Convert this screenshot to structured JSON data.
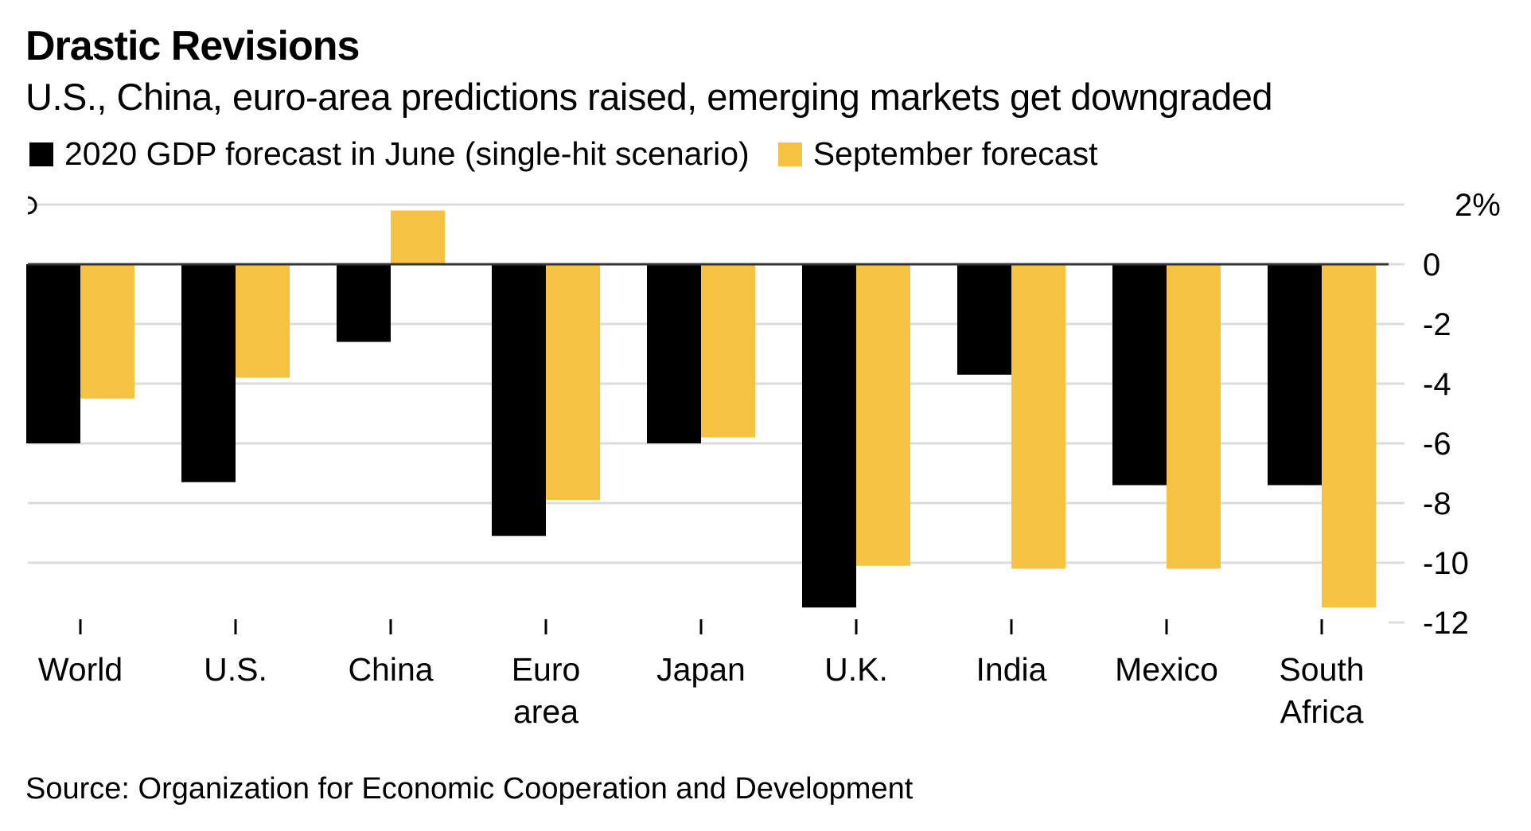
{
  "header": {
    "title": "Drastic Revisions",
    "subtitle": "U.S., China, euro-area predictions raised, emerging markets get downgraded"
  },
  "legend": [
    {
      "label": "2020 GDP forecast in June (single-hit scenario)",
      "color": "#000000"
    },
    {
      "label": "September forecast",
      "color": "#F5C242"
    }
  ],
  "footer": {
    "source": "Source: Organization for Economic Cooperation and Development"
  },
  "chart_data": {
    "type": "bar",
    "title": "Drastic Revisions",
    "subtitle": "U.S., China, euro-area predictions raised, emerging markets get downgraded",
    "xlabel": "",
    "ylabel": "",
    "categories": [
      [
        "World"
      ],
      [
        "U.S."
      ],
      [
        "China"
      ],
      [
        "Euro",
        "area"
      ],
      [
        "Japan"
      ],
      [
        "U.K."
      ],
      [
        "India"
      ],
      [
        "Mexico"
      ],
      [
        "South",
        "Africa"
      ]
    ],
    "series": [
      {
        "name": "2020 GDP forecast in June (single-hit scenario)",
        "color": "#000000",
        "values": [
          -6.0,
          -7.3,
          -2.6,
          -9.1,
          -6.0,
          -11.5,
          -3.7,
          -7.4,
          -7.4
        ]
      },
      {
        "name": "September forecast",
        "color": "#F5C242",
        "values": [
          -4.5,
          -3.8,
          1.8,
          -7.9,
          -5.8,
          -10.1,
          -10.2,
          -10.2,
          -11.5
        ]
      }
    ],
    "ylim": [
      -12,
      2
    ],
    "yticks": [
      2,
      0,
      -2,
      -4,
      -6,
      -8,
      -10,
      -12
    ],
    "ytick_labels": [
      "2%",
      "0",
      "-2",
      "-4",
      "-6",
      "-8",
      "-10",
      "-12"
    ],
    "y_axis_side": "right",
    "grid": true,
    "legend_position": "top-left"
  }
}
